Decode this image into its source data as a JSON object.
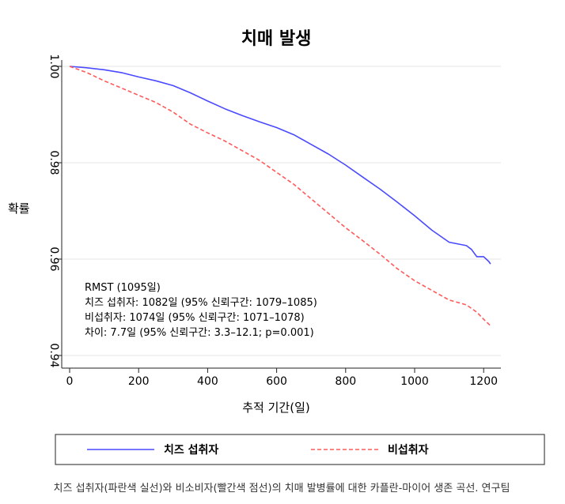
{
  "chart_data": {
    "type": "line",
    "title": "치매 발생",
    "xlabel": "추적 기간(일)",
    "ylabel": "확률",
    "xlim": [
      0,
      1250
    ],
    "ylim": [
      0.94,
      1.0
    ],
    "x_ticks": [
      0,
      200,
      400,
      600,
      800,
      1000,
      1200
    ],
    "y_ticks": [
      0.94,
      0.96,
      0.98,
      1.0
    ],
    "y_tick_labels": [
      "0.94",
      "0.96",
      "0.98",
      "1.00"
    ],
    "grid": true,
    "legend_position": "bottom",
    "annotation": {
      "lines": [
        "RMST (1095일)",
        "치즈 섭취자: 1082일 (95% 신뢰구간: 1079–1085)",
        "비섭취자: 1074일 (95% 신뢰구간: 1071–1078)",
        "차이: 7.7일 (95% 신뢰구간: 3.3–12.1; p=0.001)"
      ]
    },
    "series": [
      {
        "name": "치즈 섭취자",
        "color": "#4a4aff",
        "style": "solid",
        "points": [
          [
            0,
            1.0
          ],
          [
            50,
            0.9997
          ],
          [
            100,
            0.9993
          ],
          [
            150,
            0.9987
          ],
          [
            200,
            0.9978
          ],
          [
            250,
            0.997
          ],
          [
            300,
            0.996
          ],
          [
            350,
            0.9945
          ],
          [
            400,
            0.9928
          ],
          [
            450,
            0.9912
          ],
          [
            500,
            0.9898
          ],
          [
            550,
            0.9885
          ],
          [
            600,
            0.9873
          ],
          [
            650,
            0.9858
          ],
          [
            700,
            0.9838
          ],
          [
            750,
            0.9818
          ],
          [
            800,
            0.9795
          ],
          [
            850,
            0.977
          ],
          [
            900,
            0.9745
          ],
          [
            950,
            0.9718
          ],
          [
            1000,
            0.969
          ],
          [
            1050,
            0.966
          ],
          [
            1100,
            0.9635
          ],
          [
            1150,
            0.9628
          ],
          [
            1165,
            0.962
          ],
          [
            1180,
            0.9605
          ],
          [
            1200,
            0.9605
          ],
          [
            1215,
            0.9595
          ],
          [
            1220,
            0.959
          ]
        ]
      },
      {
        "name": "비섭취자",
        "color": "#ff5a5a",
        "style": "dashed",
        "points": [
          [
            0,
            1.0
          ],
          [
            50,
            0.9987
          ],
          [
            100,
            0.997
          ],
          [
            150,
            0.9955
          ],
          [
            200,
            0.994
          ],
          [
            250,
            0.9925
          ],
          [
            300,
            0.9905
          ],
          [
            350,
            0.988
          ],
          [
            400,
            0.9862
          ],
          [
            450,
            0.9845
          ],
          [
            500,
            0.9825
          ],
          [
            550,
            0.9805
          ],
          [
            600,
            0.978
          ],
          [
            650,
            0.9755
          ],
          [
            700,
            0.9725
          ],
          [
            750,
            0.9695
          ],
          [
            800,
            0.9665
          ],
          [
            850,
            0.9638
          ],
          [
            900,
            0.961
          ],
          [
            950,
            0.958
          ],
          [
            1000,
            0.9555
          ],
          [
            1050,
            0.9535
          ],
          [
            1100,
            0.9515
          ],
          [
            1150,
            0.9505
          ],
          [
            1180,
            0.949
          ],
          [
            1200,
            0.9475
          ],
          [
            1215,
            0.9465
          ],
          [
            1222,
            0.946
          ]
        ]
      }
    ]
  },
  "caption": "치즈 섭취자(파란색 실선)와 비소비자(빨간색 점선)의 치매 발병률에 대한 카플란-마이어 생존 곡선. 연구팀"
}
